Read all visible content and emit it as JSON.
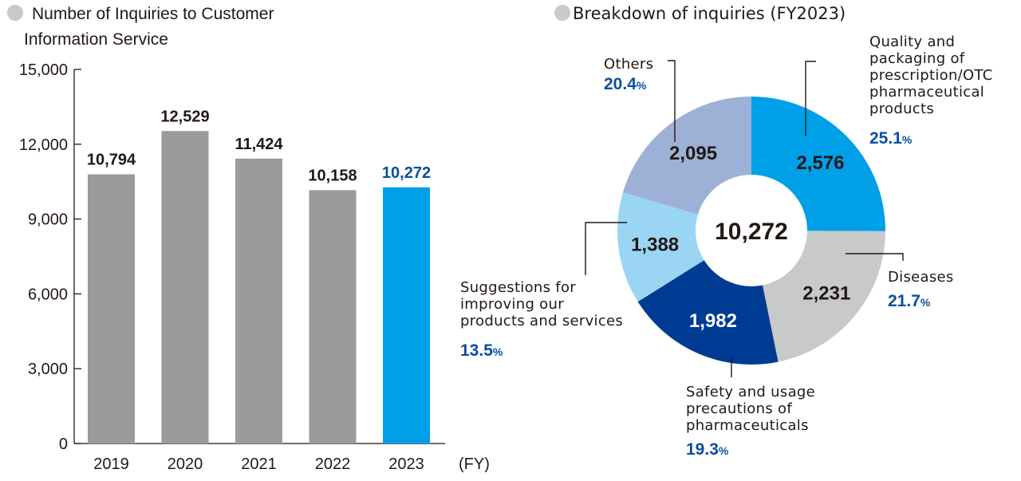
{
  "colors": {
    "bar_default": "#9a9b9a",
    "bar_highlight": "#00a0e9",
    "highlight_text": "#0a4f9e",
    "dark_text": "#231815",
    "bullet": "#c9c9c9"
  },
  "chart_data": [
    {
      "type": "bar",
      "title_line1": "Number of Inquiries to Customer",
      "title_line2": "Information Service",
      "categories": [
        "2019",
        "2020",
        "2021",
        "2022",
        "2023"
      ],
      "values": [
        10794,
        12529,
        11424,
        10158,
        10272
      ],
      "value_labels": [
        "10,794",
        "12,529",
        "11,424",
        "10,158",
        "10,272"
      ],
      "highlight_index": 4,
      "ylim": [
        0,
        15000
      ],
      "yticks": [
        0,
        3000,
        6000,
        9000,
        12000,
        15000
      ],
      "ytick_labels": [
        "0",
        "3,000",
        "6,000",
        "9,000",
        "12,000",
        "15,000"
      ],
      "xunit": "(FY)"
    },
    {
      "type": "pie",
      "title": "Breakdown of  inquiries (FY2023)",
      "total_label": "10,272",
      "slices": [
        {
          "label_lines": [
            "Quality and",
            "packaging of",
            "prescription/OTC",
            "pharmaceutical",
            "products"
          ],
          "value": 2576,
          "value_label": "2,576",
          "percent_num": "25.1",
          "color": "#00a0e9",
          "value_color": "#231815"
        },
        {
          "label_lines": [
            "Diseases"
          ],
          "value": 2231,
          "value_label": "2,231",
          "percent_num": "21.7",
          "color": "#c8c9c9",
          "value_color": "#231815"
        },
        {
          "label_lines": [
            "Safety and usage",
            "precautions of",
            "pharmaceuticals"
          ],
          "value": 1982,
          "value_label": "1,982",
          "percent_num": "19.3",
          "color": "#003b93",
          "value_color": "#ffffff"
        },
        {
          "label_lines": [
            "Suggestions for",
            "improving our",
            "products and services"
          ],
          "value": 1388,
          "value_label": "1,388",
          "percent_num": "13.5",
          "color": "#9ad6f3",
          "value_color": "#231815"
        },
        {
          "label_lines": [
            "Others"
          ],
          "value": 2095,
          "value_label": "2,095",
          "percent_num": "20.4",
          "color": "#9db0d6",
          "value_color": "#231815"
        }
      ],
      "percent_sign": "%"
    }
  ]
}
